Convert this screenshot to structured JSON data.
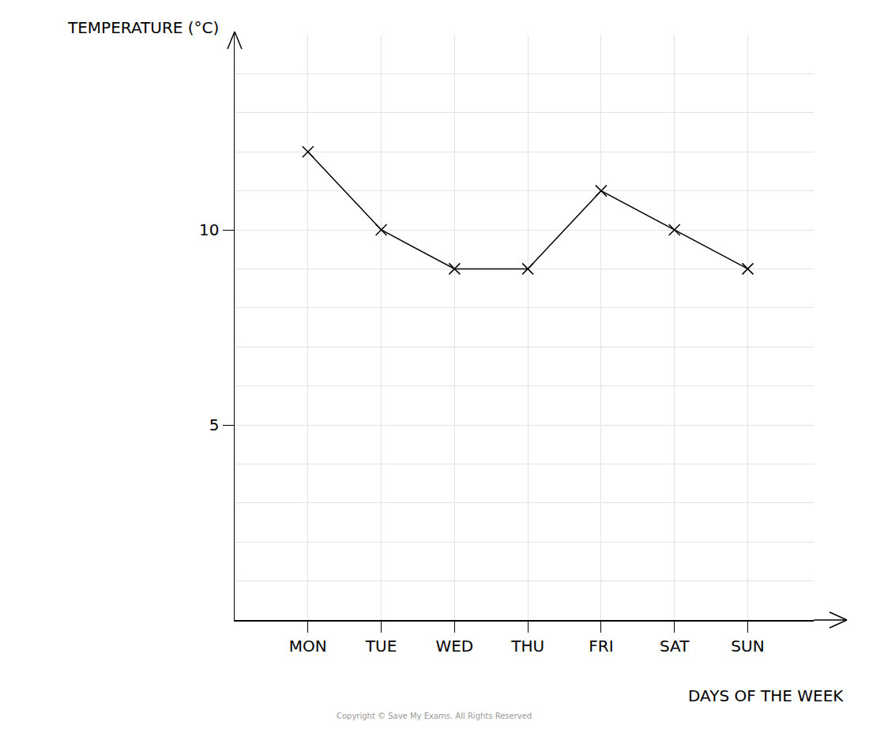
{
  "chart_data": {
    "type": "line",
    "x_label": "DAYS OF THE WEEK",
    "y_label": "TEMPERATURE (°C)",
    "categories": [
      "MON",
      "TUE",
      "WED",
      "THU",
      "FRI",
      "SAT",
      "SUN"
    ],
    "values": [
      12,
      10,
      9,
      9,
      11,
      10,
      9
    ],
    "color": "#000000",
    "marker": "x",
    "line_style": "solid",
    "ylim": [
      0,
      15
    ],
    "yticks": [
      5,
      10
    ],
    "grid": true,
    "annotations": [
      {
        "text": "Copyright © Save My Exams. All Rights Reserved"
      }
    ]
  }
}
